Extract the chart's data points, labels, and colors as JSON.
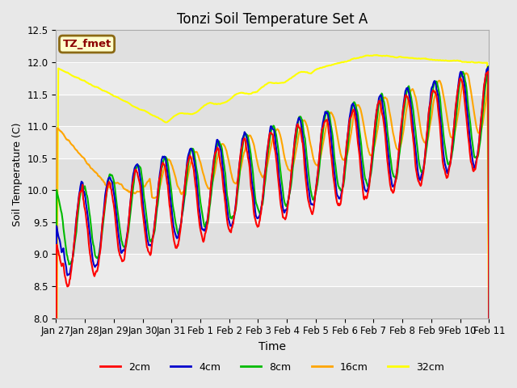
{
  "title": "Tonzi Soil Temperature Set A",
  "xlabel": "Time",
  "ylabel": "Soil Temperature (C)",
  "ylim": [
    8.0,
    12.5
  ],
  "annotation_text": "TZ_fmet",
  "annotation_color": "#8B0000",
  "annotation_bg": "#FFFFCC",
  "annotation_border": "#8B6914",
  "fig_bg": "#E8E8E8",
  "band_colors": [
    "#E0E0E0",
    "#EBEBEB"
  ],
  "grid_color": "white",
  "color_2cm": "#FF0000",
  "color_4cm": "#0000CC",
  "color_8cm": "#00BB00",
  "color_16cm": "#FFA500",
  "color_32cm": "#FFFF00",
  "line_width": 1.5,
  "tick_labels": [
    "Jan 27",
    "Jan 28",
    "Jan 29",
    "Jan 30",
    "Jan 31",
    "Feb 1",
    "Feb 2",
    "Feb 3",
    "Feb 4",
    "Feb 5",
    "Feb 6",
    "Feb 7",
    "Feb 8",
    "Feb 9",
    "Feb 10",
    "Feb 11"
  ],
  "band_values": [
    8.0,
    8.5,
    9.0,
    9.5,
    10.0,
    10.5,
    11.0,
    11.5,
    12.0,
    12.5
  ],
  "days": 16,
  "pts_per_day": 48,
  "seed": 7
}
